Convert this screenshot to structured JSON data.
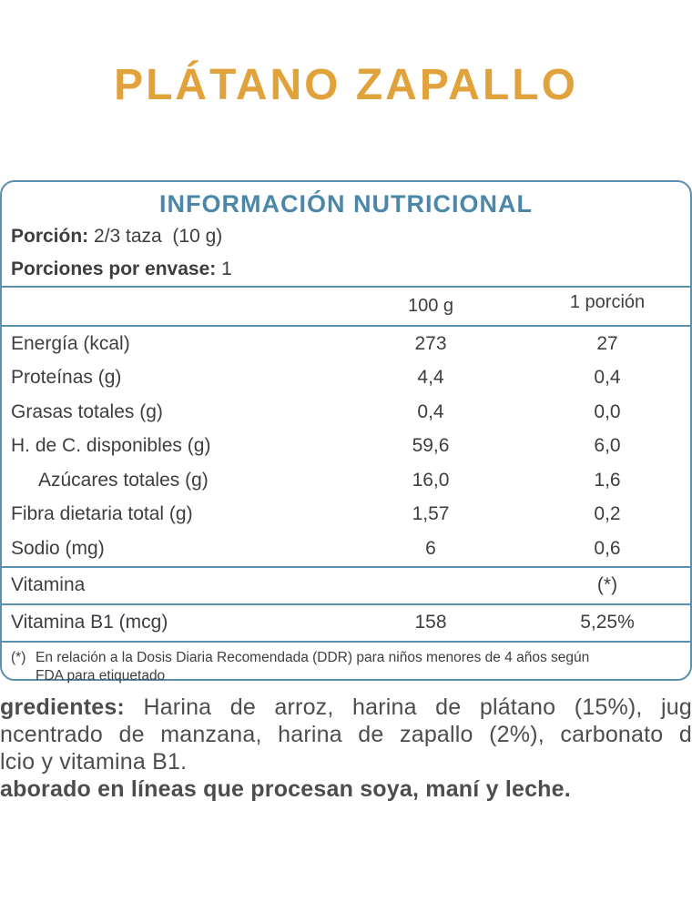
{
  "page": {
    "title": "PLÁTANO ZAPALLO"
  },
  "panel": {
    "heading": "INFORMACIÓN NUTRICIONAL",
    "serving": {
      "label": "Porción:",
      "value": "2/3 taza  (10 g)"
    },
    "servings_per_pack": {
      "label": "Porciones por envase:",
      "value": "1"
    },
    "table": {
      "columns": [
        "100 g",
        "1 porción"
      ],
      "rows": [
        {
          "name": "Energía (kcal)",
          "per100": "273",
          "perPortion": "27"
        },
        {
          "name": "Proteínas (g)",
          "per100": "4,4",
          "perPortion": "0,4"
        },
        {
          "name": "Grasas totales (g)",
          "per100": "0,4",
          "perPortion": "0,0"
        },
        {
          "name": "H. de C. disponibles (g)",
          "per100": "59,6",
          "perPortion": "6,0"
        },
        {
          "name": "Azúcares totales (g)",
          "per100": "16,0",
          "perPortion": "1,6"
        },
        {
          "name": "Fibra dietaria total (g)",
          "per100": "1,57",
          "perPortion": "0,2"
        },
        {
          "name": "Sodio (mg)",
          "per100": "6",
          "perPortion": "0,6"
        }
      ],
      "vitamin_header": {
        "name": "Vitamina",
        "mark": "(*)"
      },
      "vitamin_row": {
        "name": "Vitamina B1 (mcg)",
        "per100": "158",
        "perPortion": "5,25%"
      }
    },
    "footnote": {
      "mark": "(*)",
      "line1": "En relación a la Dosis Diaria Recomendada (DDR) para niños menores de 4 años según",
      "line2": "FDA para etiquetado"
    }
  },
  "ingredients": {
    "label_fragment": "gredientes:",
    "line1_rest": "Harina de arroz, harina de plátano (15%), jug",
    "line2": "ncentrado de manzana, harina de zapallo (2%), carbonato d",
    "line3": "lcio y vitamina B1.",
    "allergen_line": "aborado en líneas que procesan soya, maní y leche."
  },
  "colors": {
    "title_orange": "#e2a23b",
    "heading_blue": "#4c87a9",
    "rule_blue": "#5b8fae",
    "text_dark": "#3e3e40"
  }
}
